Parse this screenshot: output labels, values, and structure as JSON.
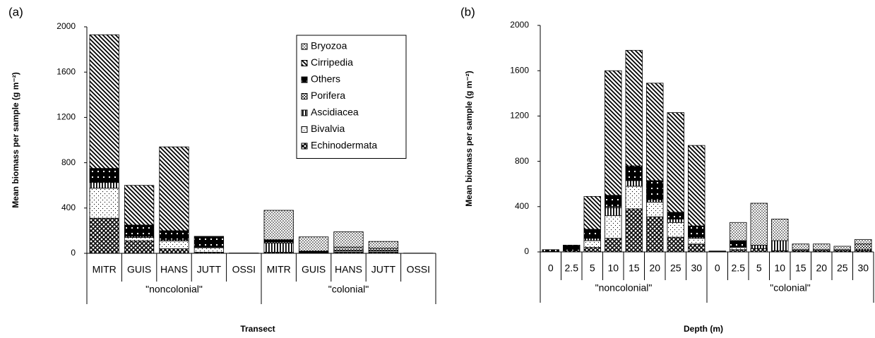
{
  "chart_data": [
    {
      "type": "bar",
      "stacked": true,
      "panel_label": "(a)",
      "ylabel": "Mean biomass per sample (g m⁻²)",
      "xlabel": "Transect",
      "groups": [
        "\"noncolonial\"",
        "\"colonial\""
      ],
      "categories": [
        "MITR",
        "GUIS",
        "HANS",
        "JUTT",
        "OSSI",
        "MITR",
        "GUIS",
        "HANS",
        "JUTT",
        "OSSI"
      ],
      "ylim": [
        0,
        2000
      ],
      "yticks": [
        0,
        400,
        800,
        1200,
        1600,
        2000
      ],
      "legend": "upper right",
      "series": [
        {
          "name": "Echinodermata",
          "pattern": "crosshatch",
          "values": [
            310,
            110,
            40,
            10,
            0,
            10,
            5,
            10,
            10,
            0
          ]
        },
        {
          "name": "Bivalvia",
          "pattern": "sparse-dots",
          "values": [
            265,
            30,
            70,
            40,
            0,
            0,
            5,
            10,
            10,
            0
          ]
        },
        {
          "name": "Ascidiacea",
          "pattern": "vertical",
          "values": [
            50,
            10,
            10,
            5,
            0,
            80,
            5,
            5,
            5,
            0
          ]
        },
        {
          "name": "Porifera",
          "pattern": "checker",
          "values": [
            0,
            0,
            0,
            0,
            0,
            10,
            5,
            30,
            20,
            0
          ]
        },
        {
          "name": "Others",
          "pattern": "black-dots",
          "values": [
            125,
            100,
            80,
            95,
            3,
            20,
            0,
            0,
            0,
            0
          ]
        },
        {
          "name": "Cirripedia",
          "pattern": "diagonal",
          "values": [
            1180,
            350,
            740,
            0,
            0,
            0,
            0,
            0,
            0,
            0
          ]
        },
        {
          "name": "Bryozoa",
          "pattern": "dense-dots",
          "values": [
            0,
            0,
            0,
            0,
            0,
            260,
            125,
            135,
            60,
            2
          ]
        }
      ]
    },
    {
      "type": "bar",
      "stacked": true,
      "panel_label": "(b)",
      "ylabel": "Mean biomass per sample (g m⁻²)",
      "xlabel": "Depth (m)",
      "groups": [
        "\"noncolonial\"",
        "\"colonial\""
      ],
      "categories": [
        "0",
        "2.5",
        "5",
        "10",
        "15",
        "20",
        "25",
        "30",
        "0",
        "2.5",
        "5",
        "10",
        "15",
        "20",
        "25",
        "30"
      ],
      "ylim": [
        0,
        2000
      ],
      "yticks": [
        0,
        400,
        800,
        1200,
        1600,
        2000
      ],
      "series": [
        {
          "name": "Echinodermata",
          "pattern": "crosshatch",
          "values": [
            0,
            10,
            40,
            120,
            380,
            310,
            130,
            70,
            0,
            20,
            30,
            10,
            10,
            10,
            10,
            10
          ]
        },
        {
          "name": "Bivalvia",
          "pattern": "sparse-dots",
          "values": [
            0,
            0,
            60,
            200,
            200,
            130,
            130,
            50,
            0,
            20,
            0,
            0,
            0,
            0,
            0,
            0
          ]
        },
        {
          "name": "Ascidiacea",
          "pattern": "vertical",
          "values": [
            0,
            0,
            20,
            70,
            50,
            20,
            30,
            10,
            0,
            5,
            30,
            90,
            0,
            0,
            0,
            10
          ]
        },
        {
          "name": "Porifera",
          "pattern": "checker",
          "values": [
            0,
            0,
            0,
            10,
            0,
            0,
            0,
            0,
            0,
            5,
            0,
            0,
            10,
            10,
            10,
            50
          ]
        },
        {
          "name": "Others",
          "pattern": "black-dots",
          "values": [
            20,
            50,
            80,
            100,
            130,
            170,
            60,
            100,
            8,
            50,
            0,
            0,
            0,
            0,
            0,
            0
          ]
        },
        {
          "name": "Cirripedia",
          "pattern": "diagonal",
          "values": [
            0,
            0,
            290,
            1100,
            1020,
            860,
            880,
            710,
            0,
            0,
            0,
            0,
            0,
            0,
            0,
            0
          ]
        },
        {
          "name": "Bryozoa",
          "pattern": "dense-dots",
          "values": [
            0,
            0,
            0,
            0,
            0,
            0,
            0,
            0,
            0,
            160,
            370,
            190,
            50,
            50,
            30,
            40
          ]
        }
      ]
    }
  ]
}
